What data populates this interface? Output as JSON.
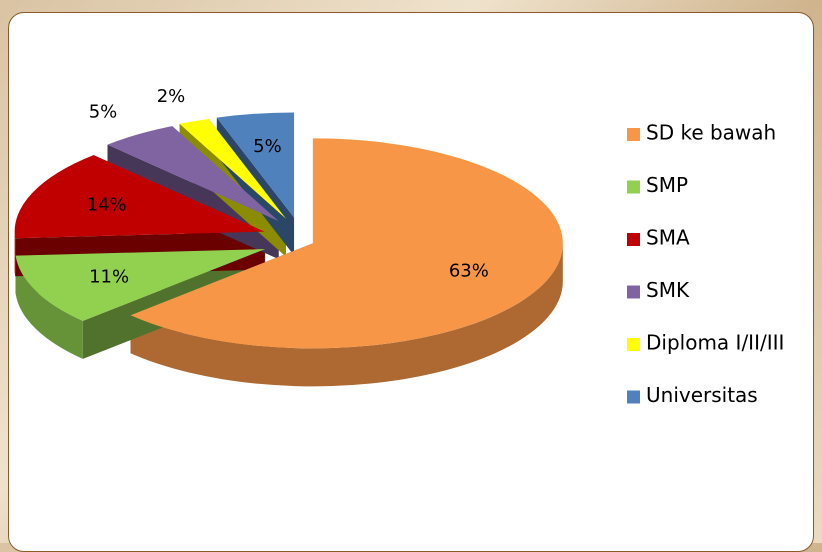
{
  "chart_data": {
    "type": "pie",
    "categories": [
      "SD ke bawah",
      "SMP",
      "SMA",
      "SMK",
      "Diploma I/II/III",
      "Universitas"
    ],
    "values": [
      63,
      11,
      14,
      5,
      2,
      5
    ],
    "value_labels": [
      "63%",
      "11%",
      "14%",
      "5%",
      "2%",
      "5%"
    ],
    "colors": [
      "#f79646",
      "#92d050",
      "#c00000",
      "#8064a2",
      "#ffff00",
      "#4f81bd"
    ],
    "legend": "right"
  }
}
